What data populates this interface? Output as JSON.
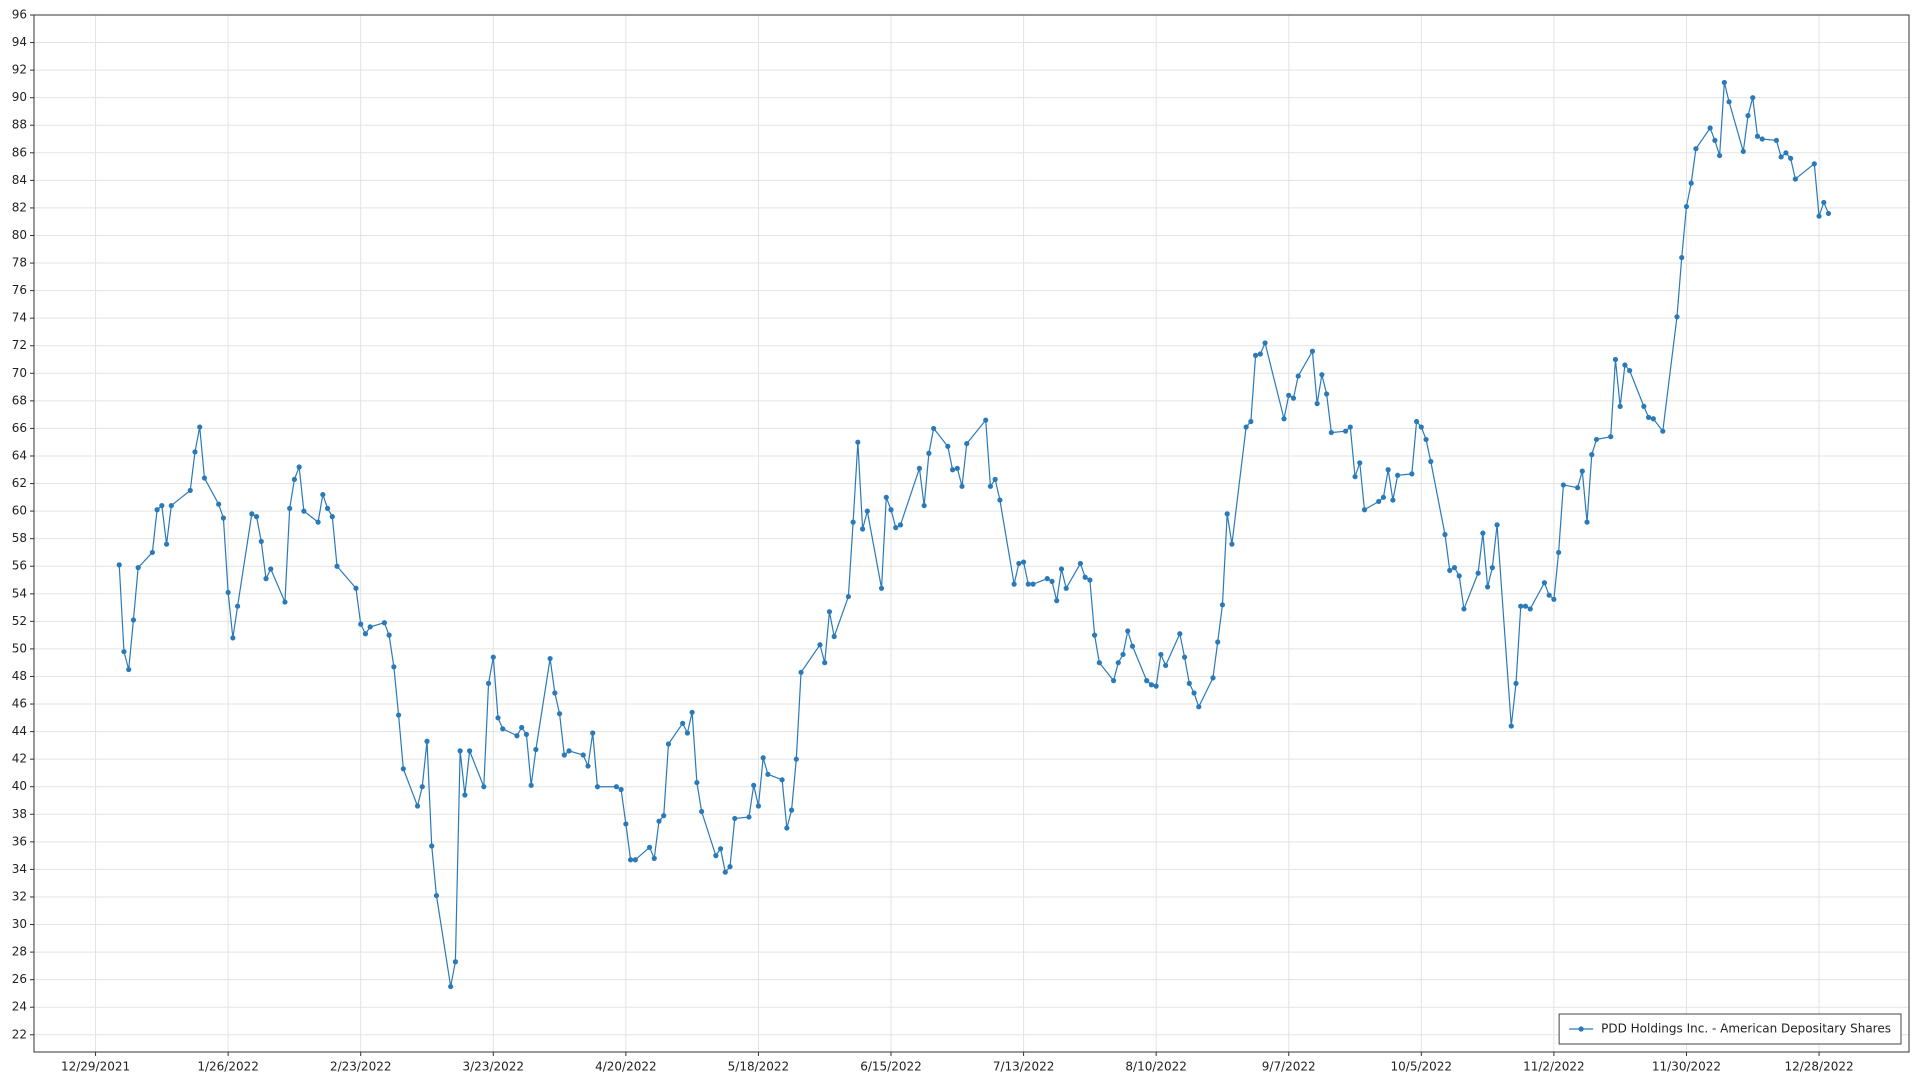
{
  "chart_data": {
    "type": "line",
    "x": [
      "1/3/2022",
      "1/4/2022",
      "1/5/2022",
      "1/6/2022",
      "1/7/2022",
      "1/10/2022",
      "1/11/2022",
      "1/12/2022",
      "1/13/2022",
      "1/14/2022",
      "1/18/2022",
      "1/19/2022",
      "1/20/2022",
      "1/21/2022",
      "1/24/2022",
      "1/25/2022",
      "1/26/2022",
      "1/27/2022",
      "1/28/2022",
      "1/31/2022",
      "2/1/2022",
      "2/2/2022",
      "2/3/2022",
      "2/4/2022",
      "2/7/2022",
      "2/8/2022",
      "2/9/2022",
      "2/10/2022",
      "2/11/2022",
      "2/14/2022",
      "2/15/2022",
      "2/16/2022",
      "2/17/2022",
      "2/18/2022",
      "2/22/2022",
      "2/23/2022",
      "2/24/2022",
      "2/25/2022",
      "2/28/2022",
      "3/1/2022",
      "3/2/2022",
      "3/3/2022",
      "3/4/2022",
      "3/7/2022",
      "3/8/2022",
      "3/9/2022",
      "3/10/2022",
      "3/11/2022",
      "3/14/2022",
      "3/15/2022",
      "3/16/2022",
      "3/17/2022",
      "3/18/2022",
      "3/21/2022",
      "3/22/2022",
      "3/23/2022",
      "3/24/2022",
      "3/25/2022",
      "3/28/2022",
      "3/29/2022",
      "3/30/2022",
      "3/31/2022",
      "4/1/2022",
      "4/4/2022",
      "4/5/2022",
      "4/6/2022",
      "4/7/2022",
      "4/8/2022",
      "4/11/2022",
      "4/12/2022",
      "4/13/2022",
      "4/14/2022",
      "4/18/2022",
      "4/19/2022",
      "4/20/2022",
      "4/21/2022",
      "4/22/2022",
      "4/25/2022",
      "4/26/2022",
      "4/27/2022",
      "4/28/2022",
      "4/29/2022",
      "5/2/2022",
      "5/3/2022",
      "5/4/2022",
      "5/5/2022",
      "5/6/2022",
      "5/9/2022",
      "5/10/2022",
      "5/11/2022",
      "5/12/2022",
      "5/13/2022",
      "5/16/2022",
      "5/17/2022",
      "5/18/2022",
      "5/19/2022",
      "5/20/2022",
      "5/23/2022",
      "5/24/2022",
      "5/25/2022",
      "5/26/2022",
      "5/27/2022",
      "5/31/2022",
      "6/1/2022",
      "6/2/2022",
      "6/3/2022",
      "6/6/2022",
      "6/7/2022",
      "6/8/2022",
      "6/9/2022",
      "6/10/2022",
      "6/13/2022",
      "6/14/2022",
      "6/15/2022",
      "6/16/2022",
      "6/17/2022",
      "6/21/2022",
      "6/22/2022",
      "6/23/2022",
      "6/24/2022",
      "6/27/2022",
      "6/28/2022",
      "6/29/2022",
      "6/30/2022",
      "7/1/2022",
      "7/5/2022",
      "7/6/2022",
      "7/7/2022",
      "7/8/2022",
      "7/11/2022",
      "7/12/2022",
      "7/13/2022",
      "7/14/2022",
      "7/15/2022",
      "7/18/2022",
      "7/19/2022",
      "7/20/2022",
      "7/21/2022",
      "7/22/2022",
      "7/25/2022",
      "7/26/2022",
      "7/27/2022",
      "7/28/2022",
      "7/29/2022",
      "8/1/2022",
      "8/2/2022",
      "8/3/2022",
      "8/4/2022",
      "8/5/2022",
      "8/8/2022",
      "8/9/2022",
      "8/10/2022",
      "8/11/2022",
      "8/12/2022",
      "8/15/2022",
      "8/16/2022",
      "8/17/2022",
      "8/18/2022",
      "8/19/2022",
      "8/22/2022",
      "8/23/2022",
      "8/24/2022",
      "8/25/2022",
      "8/26/2022",
      "8/29/2022",
      "8/30/2022",
      "8/31/2022",
      "9/1/2022",
      "9/2/2022",
      "9/6/2022",
      "9/7/2022",
      "9/8/2022",
      "9/9/2022",
      "9/12/2022",
      "9/13/2022",
      "9/14/2022",
      "9/15/2022",
      "9/16/2022",
      "9/19/2022",
      "9/20/2022",
      "9/21/2022",
      "9/22/2022",
      "9/23/2022",
      "9/26/2022",
      "9/27/2022",
      "9/28/2022",
      "9/29/2022",
      "9/30/2022",
      "10/3/2022",
      "10/4/2022",
      "10/5/2022",
      "10/6/2022",
      "10/7/2022",
      "10/10/2022",
      "10/11/2022",
      "10/12/2022",
      "10/13/2022",
      "10/14/2022",
      "10/17/2022",
      "10/18/2022",
      "10/19/2022",
      "10/20/2022",
      "10/21/2022",
      "10/24/2022",
      "10/25/2022",
      "10/26/2022",
      "10/27/2022",
      "10/28/2022",
      "10/31/2022",
      "11/1/2022",
      "11/2/2022",
      "11/3/2022",
      "11/4/2022",
      "11/7/2022",
      "11/8/2022",
      "11/9/2022",
      "11/10/2022",
      "11/11/2022",
      "11/14/2022",
      "11/15/2022",
      "11/16/2022",
      "11/17/2022",
      "11/18/2022",
      "11/21/2022",
      "11/22/2022",
      "11/23/2022",
      "11/25/2022",
      "11/28/2022",
      "11/29/2022",
      "11/30/2022",
      "12/1/2022",
      "12/2/2022",
      "12/5/2022",
      "12/6/2022",
      "12/7/2022",
      "12/8/2022",
      "12/9/2022",
      "12/12/2022",
      "12/13/2022",
      "12/14/2022",
      "12/15/2022",
      "12/16/2022",
      "12/19/2022",
      "12/20/2022",
      "12/21/2022",
      "12/22/2022",
      "12/23/2022",
      "12/27/2022",
      "12/28/2022",
      "12/29/2022",
      "12/30/2022"
    ],
    "series": [
      {
        "name": "PDD Holdings Inc. - American Depositary Shares",
        "color": "#2a7ab9",
        "values": [
          56.1,
          49.8,
          48.5,
          52.1,
          55.9,
          57,
          60.1,
          60.4,
          57.6,
          60.4,
          61.5,
          64.3,
          66.1,
          62.4,
          60.5,
          59.5,
          54.1,
          50.8,
          53.1,
          59.8,
          59.6,
          57.8,
          55.1,
          55.8,
          53.4,
          60.2,
          62.3,
          63.2,
          60,
          59.2,
          61.2,
          60.2,
          59.6,
          56,
          54.4,
          51.8,
          51.1,
          51.6,
          51.9,
          51,
          48.7,
          45.2,
          41.3,
          38.6,
          40,
          43.3,
          35.7,
          32.1,
          25.5,
          27.3,
          42.6,
          39.4,
          42.6,
          40,
          47.5,
          49.4,
          45,
          44.2,
          43.7,
          44.3,
          43.8,
          40.1,
          42.7,
          49.3,
          46.8,
          45.3,
          42.3,
          42.6,
          42.3,
          41.5,
          43.9,
          40,
          40,
          39.8,
          37.3,
          34.7,
          34.7,
          35.6,
          34.8,
          37.5,
          37.9,
          43.1,
          44.6,
          43.9,
          45.4,
          40.3,
          38.2,
          35,
          35.5,
          33.8,
          34.2,
          37.7,
          37.8,
          40.1,
          38.6,
          42.1,
          40.9,
          40.5,
          37,
          38.3,
          42,
          48.3,
          50.3,
          49,
          52.7,
          50.9,
          53.8,
          59.2,
          65,
          58.7,
          60,
          54.4,
          61,
          60.1,
          58.8,
          59,
          63.1,
          60.4,
          64.2,
          66,
          64.7,
          63,
          63.1,
          61.8,
          64.9,
          66.6,
          61.8,
          62.3,
          60.8,
          54.7,
          56.2,
          56.3,
          54.7,
          54.7,
          55.1,
          54.9,
          53.5,
          55.8,
          54.4,
          56.2,
          55.2,
          55,
          51,
          49,
          47.7,
          49,
          49.6,
          51.3,
          50.2,
          47.7,
          47.4,
          47.3,
          49.6,
          48.8,
          51.1,
          49.4,
          47.5,
          46.8,
          45.8,
          47.9,
          50.5,
          53.2,
          59.8,
          57.6,
          66.1,
          66.5,
          71.3,
          71.4,
          72.2,
          66.7,
          68.4,
          68.2,
          69.8,
          71.6,
          67.8,
          69.9,
          68.5,
          65.7,
          65.8,
          66.1,
          62.5,
          63.5,
          60.1,
          60.7,
          61,
          63,
          60.8,
          62.6,
          62.7,
          66.5,
          66.1,
          65.2,
          63.6,
          58.3,
          55.7,
          55.9,
          55.3,
          52.9,
          55.5,
          58.4,
          54.5,
          55.9,
          59,
          44.4,
          47.5,
          53.1,
          53.1,
          52.9,
          54.8,
          53.9,
          53.6,
          57,
          61.9,
          61.7,
          62.9,
          59.2,
          64.1,
          65.2,
          65.4,
          71,
          67.6,
          70.6,
          70.2,
          67.6,
          66.8,
          66.7,
          65.8,
          74.1,
          78.4,
          82.1,
          83.8,
          86.3,
          87.8,
          86.9,
          85.8,
          91.1,
          89.7,
          86.1,
          88.7,
          90,
          87.2,
          87,
          86.9,
          85.7,
          86,
          85.6,
          84.1,
          85.2,
          81.4,
          82.4,
          81.6
        ]
      }
    ],
    "xlim": [
      "12/16/2021",
      "1/16/2023"
    ],
    "xticks": [
      "12/29/2021",
      "1/26/2022",
      "2/23/2022",
      "3/23/2022",
      "4/20/2022",
      "5/18/2022",
      "6/15/2022",
      "7/13/2022",
      "8/10/2022",
      "9/7/2022",
      "10/5/2022",
      "11/2/2022",
      "11/30/2022",
      "12/28/2022"
    ],
    "ylim": [
      20.75,
      96
    ],
    "yticks": [
      22,
      24,
      26,
      28,
      30,
      32,
      34,
      36,
      38,
      40,
      42,
      44,
      46,
      48,
      50,
      52,
      54,
      56,
      58,
      60,
      62,
      64,
      66,
      68,
      70,
      72,
      74,
      76,
      78,
      80,
      82,
      84,
      86,
      88,
      90,
      92,
      94,
      96
    ],
    "grid": true,
    "legend": "lower right",
    "markers": true
  }
}
